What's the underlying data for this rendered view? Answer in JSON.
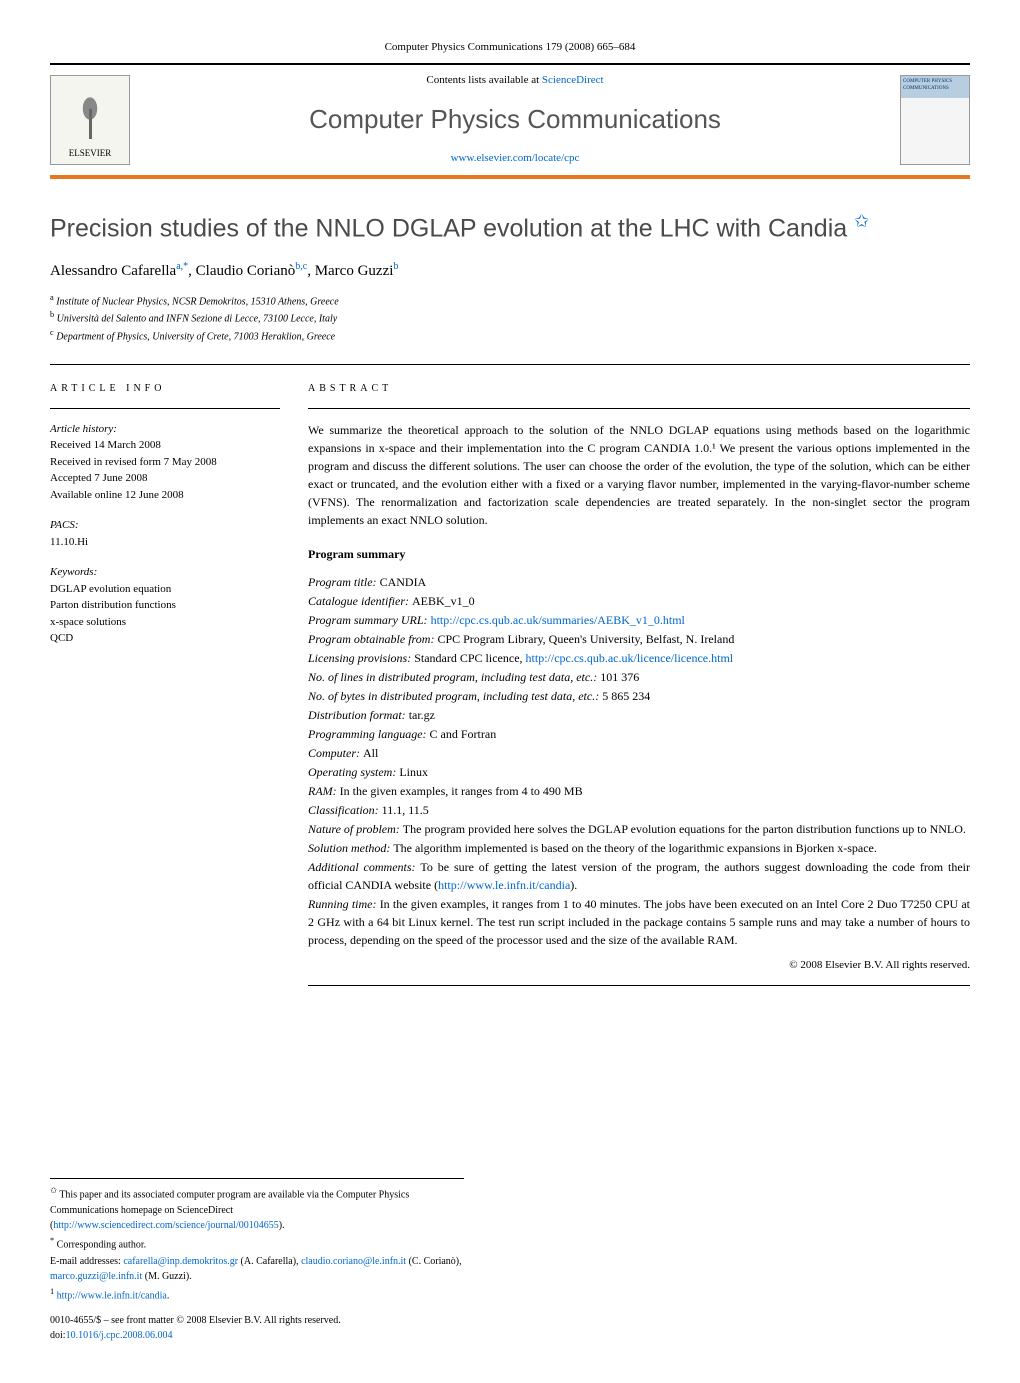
{
  "journal_ref": "Computer Physics Communications 179 (2008) 665–684",
  "banner": {
    "contents_prefix": "Contents lists available at ",
    "contents_link": "ScienceDirect",
    "journal_name": "Computer Physics Communications",
    "journal_url": "www.elsevier.com/locate/cpc",
    "publisher": "ELSEVIER",
    "cover_label": "COMPUTER PHYSICS COMMUNICATIONS"
  },
  "colors": {
    "accent_orange": "#e87722",
    "link_blue": "#0066cc",
    "title_gray": "#4a4a4a"
  },
  "title": "Precision studies of the NNLO DGLAP evolution at the LHC with Candia",
  "title_note_marker": "✩",
  "authors_html": "Alessandro Cafarella",
  "authors": [
    {
      "name": "Alessandro Cafarella",
      "marks": "a,*"
    },
    {
      "name": "Claudio Corianò",
      "marks": "b,c"
    },
    {
      "name": "Marco Guzzi",
      "marks": "b"
    }
  ],
  "affiliations": [
    {
      "mark": "a",
      "text": "Institute of Nuclear Physics, NCSR Demokritos, 15310 Athens, Greece"
    },
    {
      "mark": "b",
      "text": "Università del Salento and INFN Sezione di Lecce, 73100 Lecce, Italy"
    },
    {
      "mark": "c",
      "text": "Department of Physics, University of Crete, 71003 Heraklion, Greece"
    }
  ],
  "article_info": {
    "label": "ARTICLE INFO",
    "history_label": "Article history:",
    "history": [
      "Received 14 March 2008",
      "Received in revised form 7 May 2008",
      "Accepted 7 June 2008",
      "Available online 12 June 2008"
    ],
    "pacs_label": "PACS:",
    "pacs": "11.10.Hi",
    "keywords_label": "Keywords:",
    "keywords": [
      "DGLAP evolution equation",
      "Parton distribution functions",
      "x-space solutions",
      "QCD"
    ]
  },
  "abstract": {
    "label": "ABSTRACT",
    "text": "We summarize the theoretical approach to the solution of the NNLO DGLAP equations using methods based on the logarithmic expansions in x-space and their implementation into the C program CANDIA 1.0.¹ We present the various options implemented in the program and discuss the different solutions. The user can choose the order of the evolution, the type of the solution, which can be either exact or truncated, and the evolution either with a fixed or a varying flavor number, implemented in the varying-flavor-number scheme (VFNS). The renormalization and factorization scale dependencies are treated separately. In the non-singlet sector the program implements an exact NNLO solution."
  },
  "program_summary": {
    "title": "Program summary",
    "fields": [
      {
        "label": "Program title:",
        "value": "CANDIA"
      },
      {
        "label": "Catalogue identifier:",
        "value": "AEBK_v1_0"
      },
      {
        "label": "Program summary URL:",
        "value": "http://cpc.cs.qub.ac.uk/summaries/AEBK_v1_0.html",
        "is_link": true
      },
      {
        "label": "Program obtainable from:",
        "value": "CPC Program Library, Queen's University, Belfast, N. Ireland"
      },
      {
        "label": "Licensing provisions:",
        "value": "Standard CPC licence, ",
        "link": "http://cpc.cs.qub.ac.uk/licence/licence.html"
      },
      {
        "label": "No. of lines in distributed program, including test data, etc.:",
        "value": "101 376"
      },
      {
        "label": "No. of bytes in distributed program, including test data, etc.:",
        "value": "5 865 234"
      },
      {
        "label": "Distribution format:",
        "value": "tar.gz"
      },
      {
        "label": "Programming language:",
        "value": "C and Fortran"
      },
      {
        "label": "Computer:",
        "value": "All"
      },
      {
        "label": "Operating system:",
        "value": "Linux"
      },
      {
        "label": "RAM:",
        "value": "In the given examples, it ranges from 4 to 490 MB"
      },
      {
        "label": "Classification:",
        "value": "11.1, 11.5"
      },
      {
        "label": "Nature of problem:",
        "value": "The program provided here solves the DGLAP evolution equations for the parton distribution functions up to NNLO."
      },
      {
        "label": "Solution method:",
        "value": "The algorithm implemented is based on the theory of the logarithmic expansions in Bjorken x-space."
      },
      {
        "label": "Additional comments:",
        "value": "To be sure of getting the latest version of the program, the authors suggest downloading the code from their official CANDIA website (",
        "link": "http://www.le.infn.it/candia",
        "suffix": ")."
      },
      {
        "label": "Running time:",
        "value": "In the given examples, it ranges from 1 to 40 minutes. The jobs have been executed on an Intel Core 2 Duo T7250 CPU at 2 GHz with a 64 bit Linux kernel. The test run script included in the package contains 5 sample runs and may take a number of hours to process, depending on the speed of the processor used and the size of the available RAM."
      }
    ]
  },
  "copyright": "© 2008 Elsevier B.V. All rights reserved.",
  "footnotes": {
    "star": "This paper and its associated computer program are available via the Computer Physics Communications homepage on ScienceDirect (",
    "star_link": "http://www.sciencedirect.com/science/journal/00104655",
    "star_suffix": ").",
    "corresponding": "Corresponding author.",
    "emails_label": "E-mail addresses: ",
    "emails": [
      {
        "addr": "cafarella@inp.demokritos.gr",
        "name": "(A. Cafarella)"
      },
      {
        "addr": "claudio.coriano@le.infn.it",
        "name": "(C. Corianò)"
      },
      {
        "addr": "marco.guzzi@le.infn.it",
        "name": "(M. Guzzi)"
      }
    ],
    "note1": "http://www.le.infn.it/candia"
  },
  "footer": {
    "issn": "0010-4655/$ – see front matter © 2008 Elsevier B.V. All rights reserved.",
    "doi_label": "doi:",
    "doi": "10.1016/j.cpc.2008.06.004"
  }
}
